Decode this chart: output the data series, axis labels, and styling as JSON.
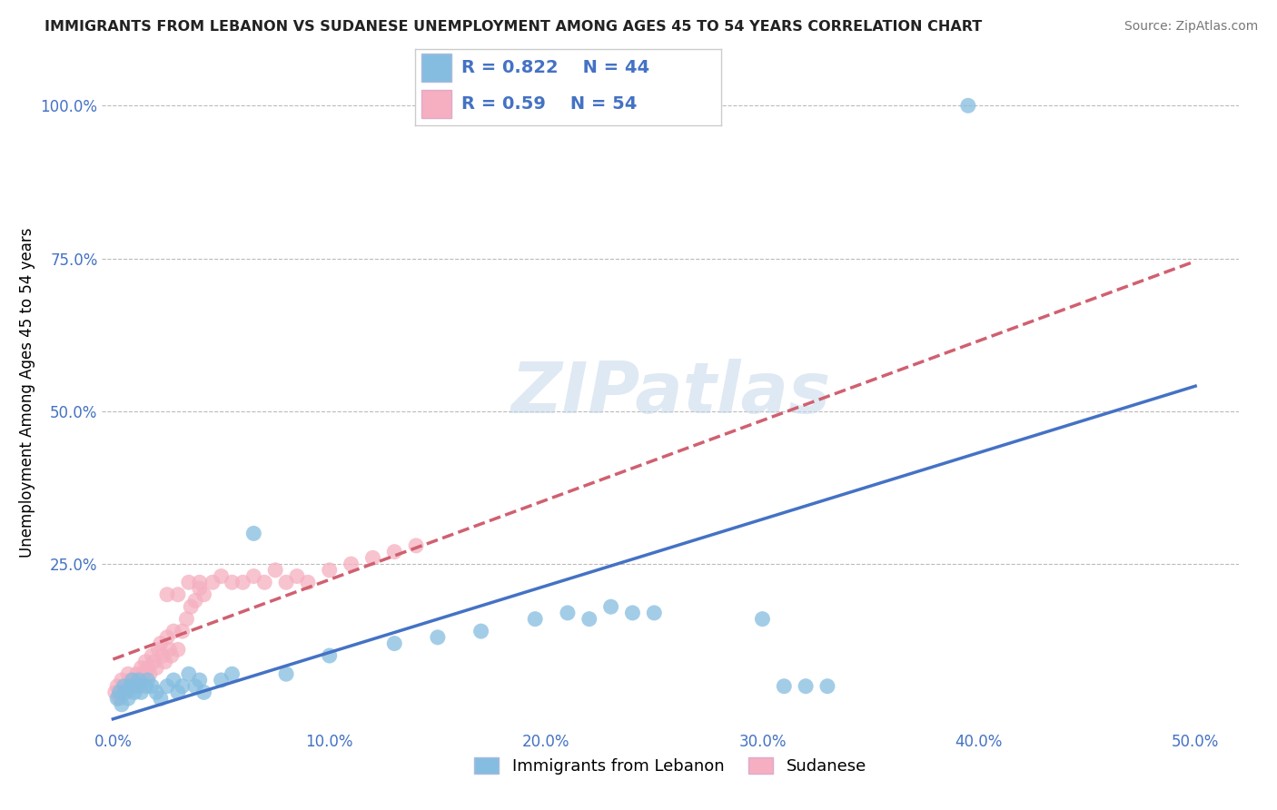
{
  "title": "IMMIGRANTS FROM LEBANON VS SUDANESE UNEMPLOYMENT AMONG AGES 45 TO 54 YEARS CORRELATION CHART",
  "source": "Source: ZipAtlas.com",
  "ylabel": "Unemployment Among Ages 45 to 54 years",
  "xlim": [
    -0.005,
    0.52
  ],
  "ylim": [
    -0.02,
    1.08
  ],
  "xticks": [
    0.0,
    0.1,
    0.2,
    0.3,
    0.4,
    0.5
  ],
  "yticks": [
    0.0,
    0.25,
    0.5,
    0.75,
    1.0
  ],
  "xtick_labels": [
    "0.0%",
    "10.0%",
    "20.0%",
    "30.0%",
    "40.0%",
    "50.0%"
  ],
  "ytick_labels": [
    "",
    "25.0%",
    "50.0%",
    "75.0%",
    "100.0%"
  ],
  "legend1_label": "Immigrants from Lebanon",
  "legend2_label": "Sudanese",
  "r1": 0.822,
  "n1": 44,
  "r2": 0.59,
  "n2": 54,
  "blue_color": "#85bde0",
  "pink_color": "#f5afc0",
  "line_blue": "#4472C4",
  "line_pink": "#d06070",
  "watermark": "ZIPatlas",
  "background_color": "#ffffff",
  "grid_color": "#bbbbbb",
  "blue_scatter_x": [
    0.002,
    0.003,
    0.004,
    0.005,
    0.006,
    0.007,
    0.008,
    0.009,
    0.01,
    0.011,
    0.012,
    0.013,
    0.015,
    0.016,
    0.018,
    0.02,
    0.022,
    0.025,
    0.028,
    0.03,
    0.032,
    0.035,
    0.038,
    0.04,
    0.042,
    0.05,
    0.055,
    0.065,
    0.08,
    0.1,
    0.13,
    0.15,
    0.17,
    0.195,
    0.21,
    0.22,
    0.23,
    0.24,
    0.25,
    0.3,
    0.31,
    0.32,
    0.33,
    0.395
  ],
  "blue_scatter_y": [
    0.03,
    0.04,
    0.02,
    0.05,
    0.04,
    0.03,
    0.05,
    0.06,
    0.04,
    0.05,
    0.06,
    0.04,
    0.05,
    0.06,
    0.05,
    0.04,
    0.03,
    0.05,
    0.06,
    0.04,
    0.05,
    0.07,
    0.05,
    0.06,
    0.04,
    0.06,
    0.07,
    0.3,
    0.07,
    0.1,
    0.12,
    0.13,
    0.14,
    0.16,
    0.17,
    0.16,
    0.18,
    0.17,
    0.17,
    0.16,
    0.05,
    0.05,
    0.05,
    1.0
  ],
  "pink_scatter_x": [
    0.001,
    0.002,
    0.003,
    0.004,
    0.005,
    0.006,
    0.007,
    0.008,
    0.009,
    0.01,
    0.011,
    0.012,
    0.013,
    0.014,
    0.015,
    0.016,
    0.017,
    0.018,
    0.019,
    0.02,
    0.021,
    0.022,
    0.023,
    0.024,
    0.025,
    0.026,
    0.027,
    0.028,
    0.03,
    0.032,
    0.034,
    0.036,
    0.038,
    0.04,
    0.042,
    0.046,
    0.05,
    0.055,
    0.06,
    0.065,
    0.07,
    0.075,
    0.08,
    0.085,
    0.09,
    0.1,
    0.11,
    0.12,
    0.13,
    0.14,
    0.025,
    0.03,
    0.035,
    0.04
  ],
  "pink_scatter_y": [
    0.04,
    0.05,
    0.03,
    0.06,
    0.04,
    0.05,
    0.07,
    0.06,
    0.05,
    0.06,
    0.07,
    0.05,
    0.08,
    0.07,
    0.09,
    0.08,
    0.07,
    0.1,
    0.09,
    0.08,
    0.11,
    0.12,
    0.1,
    0.09,
    0.13,
    0.11,
    0.1,
    0.14,
    0.11,
    0.14,
    0.16,
    0.18,
    0.19,
    0.21,
    0.2,
    0.22,
    0.23,
    0.22,
    0.22,
    0.23,
    0.22,
    0.24,
    0.22,
    0.23,
    0.22,
    0.24,
    0.25,
    0.26,
    0.27,
    0.28,
    0.2,
    0.2,
    0.22,
    0.22
  ]
}
